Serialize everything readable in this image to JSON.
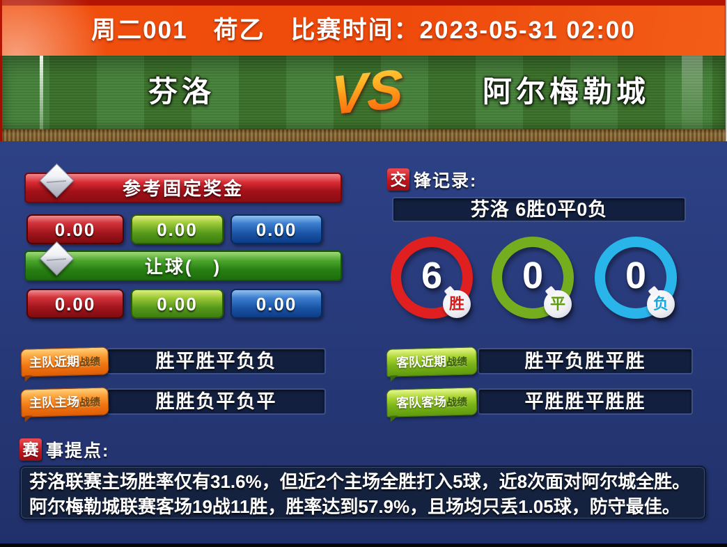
{
  "header": {
    "title": "周二001　荷乙　比赛时间：2023-05-31 02:00"
  },
  "match": {
    "home_team": "芬洛",
    "away_team": "阿尔梅勒城",
    "vs_label": "VS"
  },
  "odds_panel": {
    "fixed_title": "参考固定奖金",
    "fixed_values": [
      "0.00",
      "0.00",
      "0.00"
    ],
    "handicap_title": "让球(　)",
    "handicap_values": [
      "0.00",
      "0.00",
      "0.00"
    ]
  },
  "h2h": {
    "title_badge": "交",
    "title_rest": "锋记录:",
    "summary": "芬洛 6胜0平0负",
    "circles": [
      {
        "value": "6",
        "label": "胜",
        "color": "#e02020"
      },
      {
        "value": "0",
        "label": "平",
        "color": "#74ae1f"
      },
      {
        "value": "0",
        "label": "负",
        "color": "#2ab5ea"
      }
    ]
  },
  "form_rows": {
    "home_recent": {
      "tag": "主队近期",
      "suffix": "战绩",
      "value": "胜平胜平负负"
    },
    "home_home": {
      "tag": "主队主场",
      "suffix": "战绩",
      "value": "胜胜负平负平"
    },
    "away_recent": {
      "tag": "客队近期",
      "suffix": "战绩",
      "value": "胜平负胜平胜"
    },
    "away_away": {
      "tag": "客队客场",
      "suffix": "战绩",
      "value": "平胜胜平胜胜"
    }
  },
  "notes": {
    "title_badge": "赛",
    "title_rest": "事提点:",
    "lines": [
      "芬洛联赛主场胜率仅有31.6%，但近2个主场全胜打入5球，近8次面对阿尔城全胜。",
      "阿尔梅勒城联赛客场19战11胜，胜率达到57.9%，且场均只丢1.05球，防守最佳。"
    ]
  },
  "colors": {
    "header_orange": "#f1500e",
    "body_blue": "#2a3d7f",
    "win_red": "#e02020",
    "draw_green": "#74ae1f",
    "loss_cyan": "#2ab5ea"
  }
}
